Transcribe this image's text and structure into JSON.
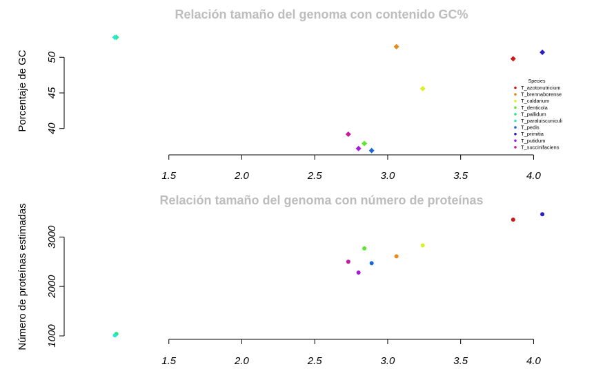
{
  "chart_data": [
    {
      "type": "scatter",
      "title": "Relación tamaño del genoma con contenido GC%",
      "xlabel": "",
      "ylabel": "Porcentaje de GC",
      "xlim": [
        1.0,
        4.05
      ],
      "ylim": [
        36.3,
        53.6
      ],
      "xticks": [
        "1.5",
        "2.0",
        "2.5",
        "3.0",
        "3.5",
        "4.0"
      ],
      "yticks": [
        "40",
        "45",
        "50"
      ],
      "marker": "diamond",
      "legend": {
        "title": "Species",
        "placement": "right",
        "entries": [
          {
            "label": "T_azotonutricium",
            "color": "#cc1a1a"
          },
          {
            "label": "T_brennaborense",
            "color": "#e68a1a"
          },
          {
            "label": "T_caldarium",
            "color": "#d9ef2a"
          },
          {
            "label": "T_denticola",
            "color": "#5ce62e"
          },
          {
            "label": "T_pallidum",
            "color": "#26e67a"
          },
          {
            "label": "T_paraluiscuniculi",
            "color": "#2ee6d4"
          },
          {
            "label": "T_pedis",
            "color": "#1a66d9"
          },
          {
            "label": "T_primitia",
            "color": "#2a1ac8"
          },
          {
            "label": "T_putidum",
            "color": "#a61ad9"
          },
          {
            "label": "T_succinifaciens",
            "color": "#c81a9e"
          }
        ]
      },
      "points": [
        {
          "species": "T_azotonutricium",
          "x": 3.86,
          "y": 49.8
        },
        {
          "species": "T_brennaborense",
          "x": 3.06,
          "y": 51.5
        },
        {
          "species": "T_caldarium",
          "x": 3.24,
          "y": 45.6
        },
        {
          "species": "T_denticola",
          "x": 2.84,
          "y": 37.9
        },
        {
          "species": "T_pallidum",
          "x": 1.14,
          "y": 52.8
        },
        {
          "species": "T_paraluiscuniculi",
          "x": 1.13,
          "y": 52.8
        },
        {
          "species": "T_pedis",
          "x": 2.89,
          "y": 36.9
        },
        {
          "species": "T_primitia",
          "x": 4.06,
          "y": 50.7
        },
        {
          "species": "T_putidum",
          "x": 2.8,
          "y": 37.2
        },
        {
          "species": "T_succinifaciens",
          "x": 2.73,
          "y": 39.2
        }
      ]
    },
    {
      "type": "scatter",
      "title": "Relación tamaño del genoma con número de proteínas",
      "xlabel": "",
      "ylabel": "Número de proteínas estimadas",
      "xlim": [
        1.0,
        4.05
      ],
      "ylim": [
        1000,
        3450
      ],
      "xticks": [
        "1.5",
        "2.0",
        "2.5",
        "3.0",
        "3.5",
        "4.0"
      ],
      "yticks": [
        "1000",
        "2000",
        "3000"
      ],
      "marker": "circle",
      "points": [
        {
          "species": "T_azotonutricium",
          "x": 3.86,
          "y": 3350
        },
        {
          "species": "T_brennaborense",
          "x": 3.06,
          "y": 2610
        },
        {
          "species": "T_caldarium",
          "x": 3.24,
          "y": 2830
        },
        {
          "species": "T_denticola",
          "x": 2.84,
          "y": 2770
        },
        {
          "species": "T_pallidum",
          "x": 1.14,
          "y": 1040
        },
        {
          "species": "T_paraluiscuniculi",
          "x": 1.13,
          "y": 1010
        },
        {
          "species": "T_pedis",
          "x": 2.89,
          "y": 2470
        },
        {
          "species": "T_primitia",
          "x": 4.06,
          "y": 3460
        },
        {
          "species": "T_putidum",
          "x": 2.8,
          "y": 2280
        },
        {
          "species": "T_succinifaciens",
          "x": 2.73,
          "y": 2500
        }
      ]
    }
  ]
}
